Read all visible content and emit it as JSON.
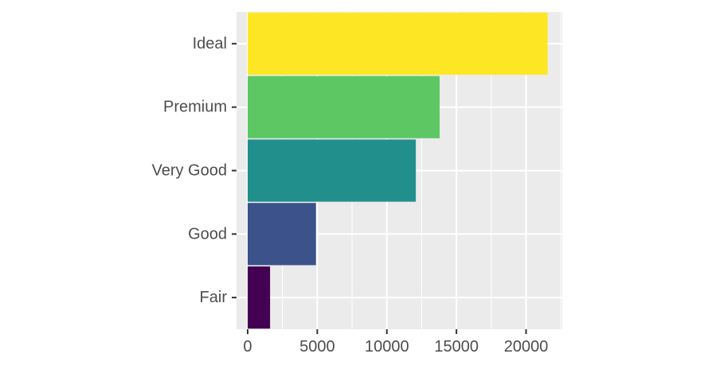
{
  "chart_data": {
    "type": "bar",
    "orientation": "horizontal",
    "categories": [
      "Fair",
      "Good",
      "Very Good",
      "Premium",
      "Ideal"
    ],
    "values": [
      1610,
      4906,
      12082,
      13791,
      21551
    ],
    "colors": [
      "#440154",
      "#3B528B",
      "#21908C",
      "#5DC863",
      "#FDE725"
    ],
    "title": "",
    "xlabel": "",
    "ylabel": "",
    "xlim": [
      -800,
      22600
    ],
    "x_ticks": [
      0,
      5000,
      10000,
      15000,
      20000
    ],
    "x_tick_labels": [
      "0",
      "5000",
      "10000",
      "15000",
      "20000"
    ],
    "grid": true,
    "panel_background": "#EBEBEB",
    "grid_color": "#FFFFFF",
    "legend": "none"
  }
}
